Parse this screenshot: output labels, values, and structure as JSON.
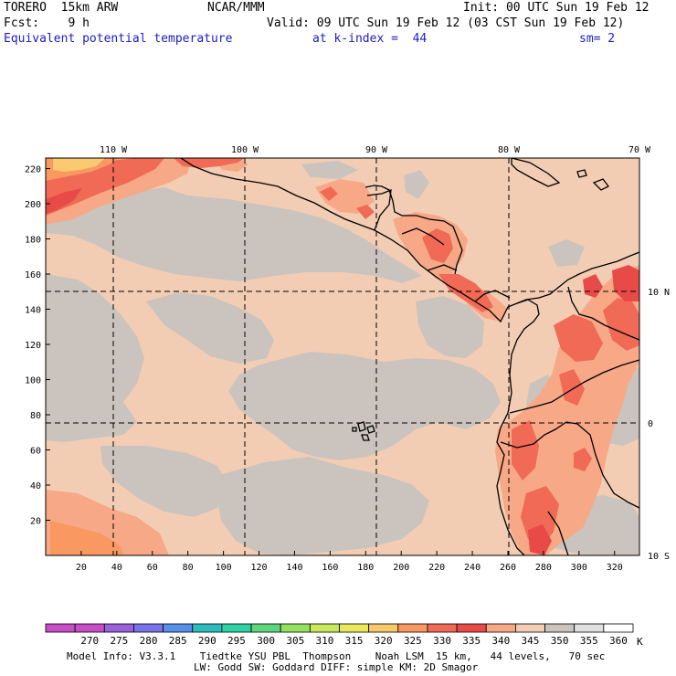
{
  "header": {
    "model": "TORERO  15km ARW",
    "org": "NCAR/MMM",
    "init": "Init: 00 UTC Sun 19 Feb 12",
    "fcst": "Fcst:    9 h",
    "valid": "Valid: 09 UTC Sun 19 Feb 12 (03 CST Sun 19 Feb 12)",
    "field": "Equivalent potential temperature",
    "level": "at k-index =  44",
    "smoothing": "sm= 2"
  },
  "map": {
    "lon_labels": [
      "110 W",
      "100 W",
      "90 W",
      "80 W",
      "70 W"
    ],
    "lat_labels": [
      "10 N",
      "0",
      "10 S"
    ],
    "y_ticks": [
      "20",
      "40",
      "60",
      "80",
      "100",
      "120",
      "140",
      "160",
      "180",
      "200",
      "220"
    ],
    "x_ticks": [
      "20",
      "40",
      "60",
      "80",
      "100",
      "120",
      "140",
      "160",
      "180",
      "200",
      "220",
      "240",
      "260",
      "280",
      "300",
      "320"
    ],
    "grid_style": "dashed",
    "colors": {
      "base": "#f2cdb4",
      "gray": "#cbc3bd",
      "salmon": "#f7a886",
      "coral": "#f06a55",
      "red": "#e84a48",
      "orange": "#f99861",
      "yellow": "#f9ca72",
      "coast": "#000000"
    }
  },
  "colorbar": {
    "labels": [
      "270",
      "275",
      "280",
      "285",
      "290",
      "295",
      "300",
      "305",
      "310",
      "315",
      "320",
      "325",
      "330",
      "335",
      "340",
      "345",
      "350",
      "355",
      "360"
    ],
    "unit": "K",
    "colors": [
      "#c84ec8",
      "#9a62d9",
      "#7a72e8",
      "#5590ea",
      "#2cbcc0",
      "#2dd2a5",
      "#5ed67c",
      "#92e260",
      "#c8e858",
      "#eae85a",
      "#f7c96a",
      "#f99861",
      "#f06a55",
      "#e84a48",
      "#f7a886",
      "#f2cdb4",
      "#cbc3bd",
      "#e0e0e0",
      "#ffffff"
    ]
  },
  "footer": {
    "line1": "Model Info: V3.3.1    Tiedtke YSU PBL  Thompson    Noah LSM  15 km,   44 levels,   70 sec",
    "line2": "LW: Godd SW: Goddard DIFF: simple KM: 2D Smagor"
  }
}
